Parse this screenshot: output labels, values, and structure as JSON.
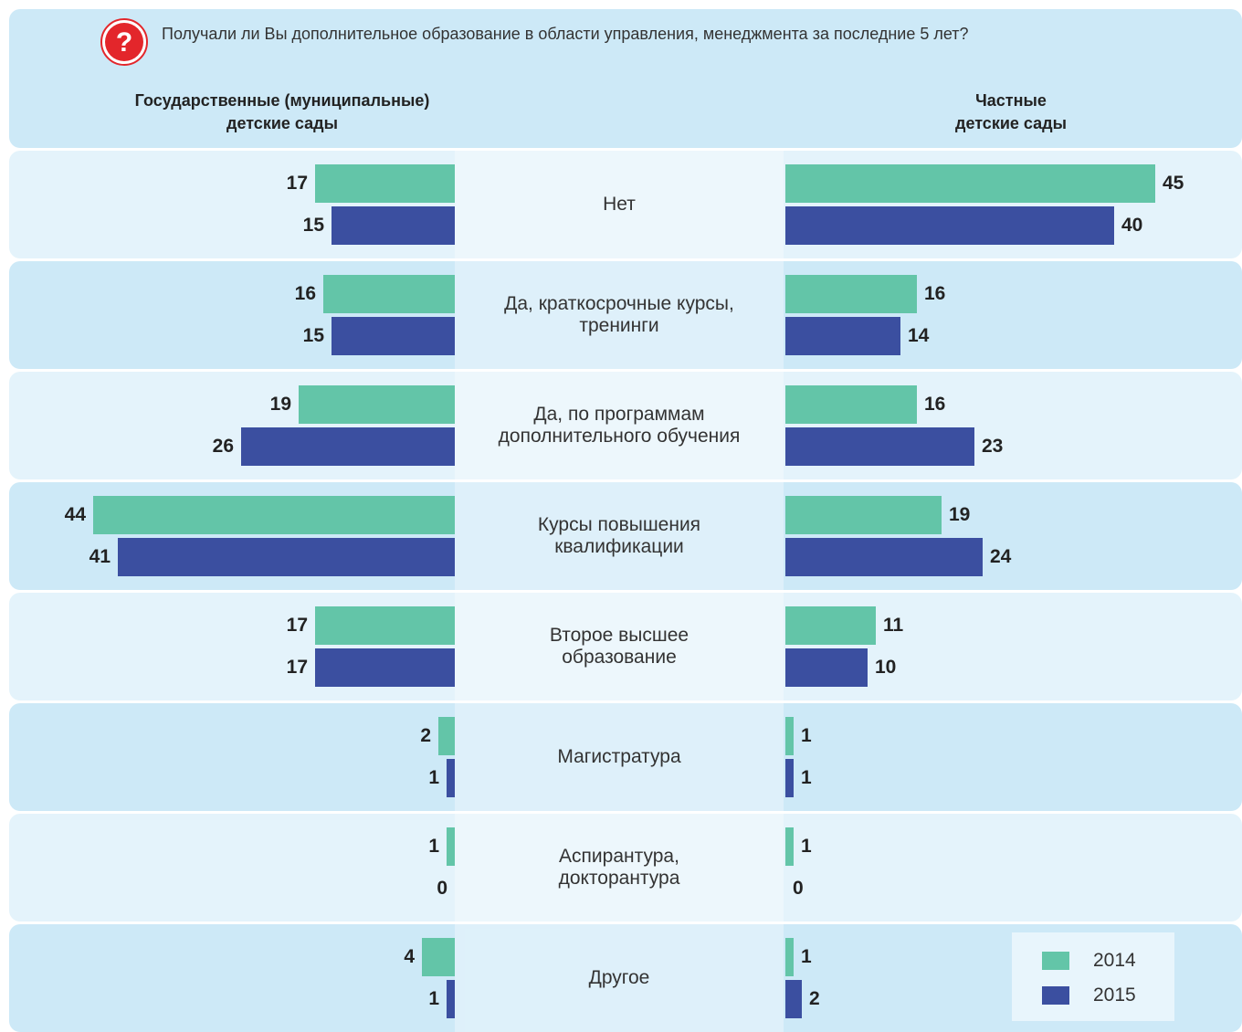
{
  "chart_data": {
    "type": "bar",
    "question": "Получали ли Вы дополнительное образование в области управления, менеджмента за последние 5 лет?",
    "categories": [
      "Нет",
      "Да, краткосрочные курсы,\nтренинги",
      "Да, по программам\nдополнительного обучения",
      "Курсы повышения\nквалификации",
      "Второе высшее\nобразование",
      "Магистратура",
      "Аспирантура,\nдокторантура",
      "Другое"
    ],
    "series": [
      {
        "name": "2014",
        "color": "#63c5a8"
      },
      {
        "name": "2015",
        "color": "#3b4fa0"
      }
    ],
    "panels": [
      {
        "title": "Государственные (муниципальные)\nдетские сады",
        "direction": "left",
        "values": [
          [
            17,
            16,
            19,
            44,
            17,
            2,
            1,
            4
          ],
          [
            15,
            15,
            26,
            41,
            17,
            1,
            0,
            1
          ]
        ]
      },
      {
        "title": "Частные\nдетские сады",
        "direction": "right",
        "values": [
          [
            45,
            16,
            16,
            19,
            11,
            1,
            1,
            1
          ],
          [
            40,
            14,
            23,
            24,
            10,
            1,
            0,
            2
          ]
        ]
      }
    ]
  }
}
